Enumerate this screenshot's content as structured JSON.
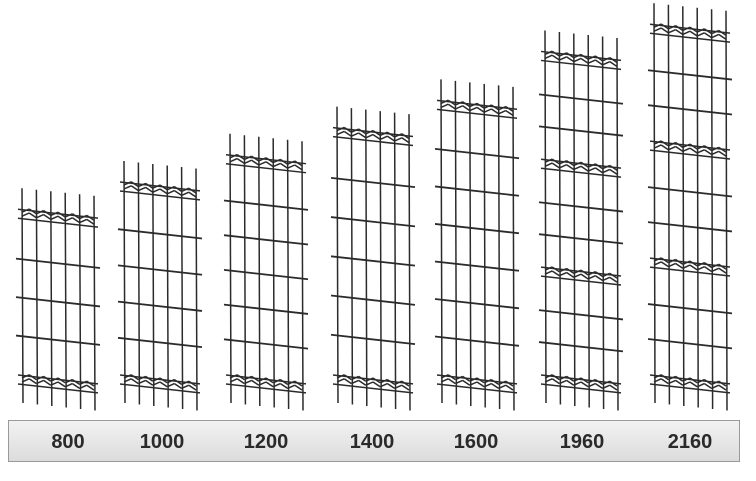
{
  "panels": [
    {
      "height_label": "800",
      "mid_folds": 0
    },
    {
      "height_label": "1000",
      "mid_folds": 0
    },
    {
      "height_label": "1200",
      "mid_folds": 0
    },
    {
      "height_label": "1400",
      "mid_folds": 0
    },
    {
      "height_label": "1600",
      "mid_folds": 0
    },
    {
      "height_label": "1960",
      "mid_folds": 2
    },
    {
      "height_label": "2160",
      "mid_folds": 2
    }
  ],
  "colors": {
    "wire": "#2b2b2b",
    "label_bar": "#e4e4e4"
  }
}
